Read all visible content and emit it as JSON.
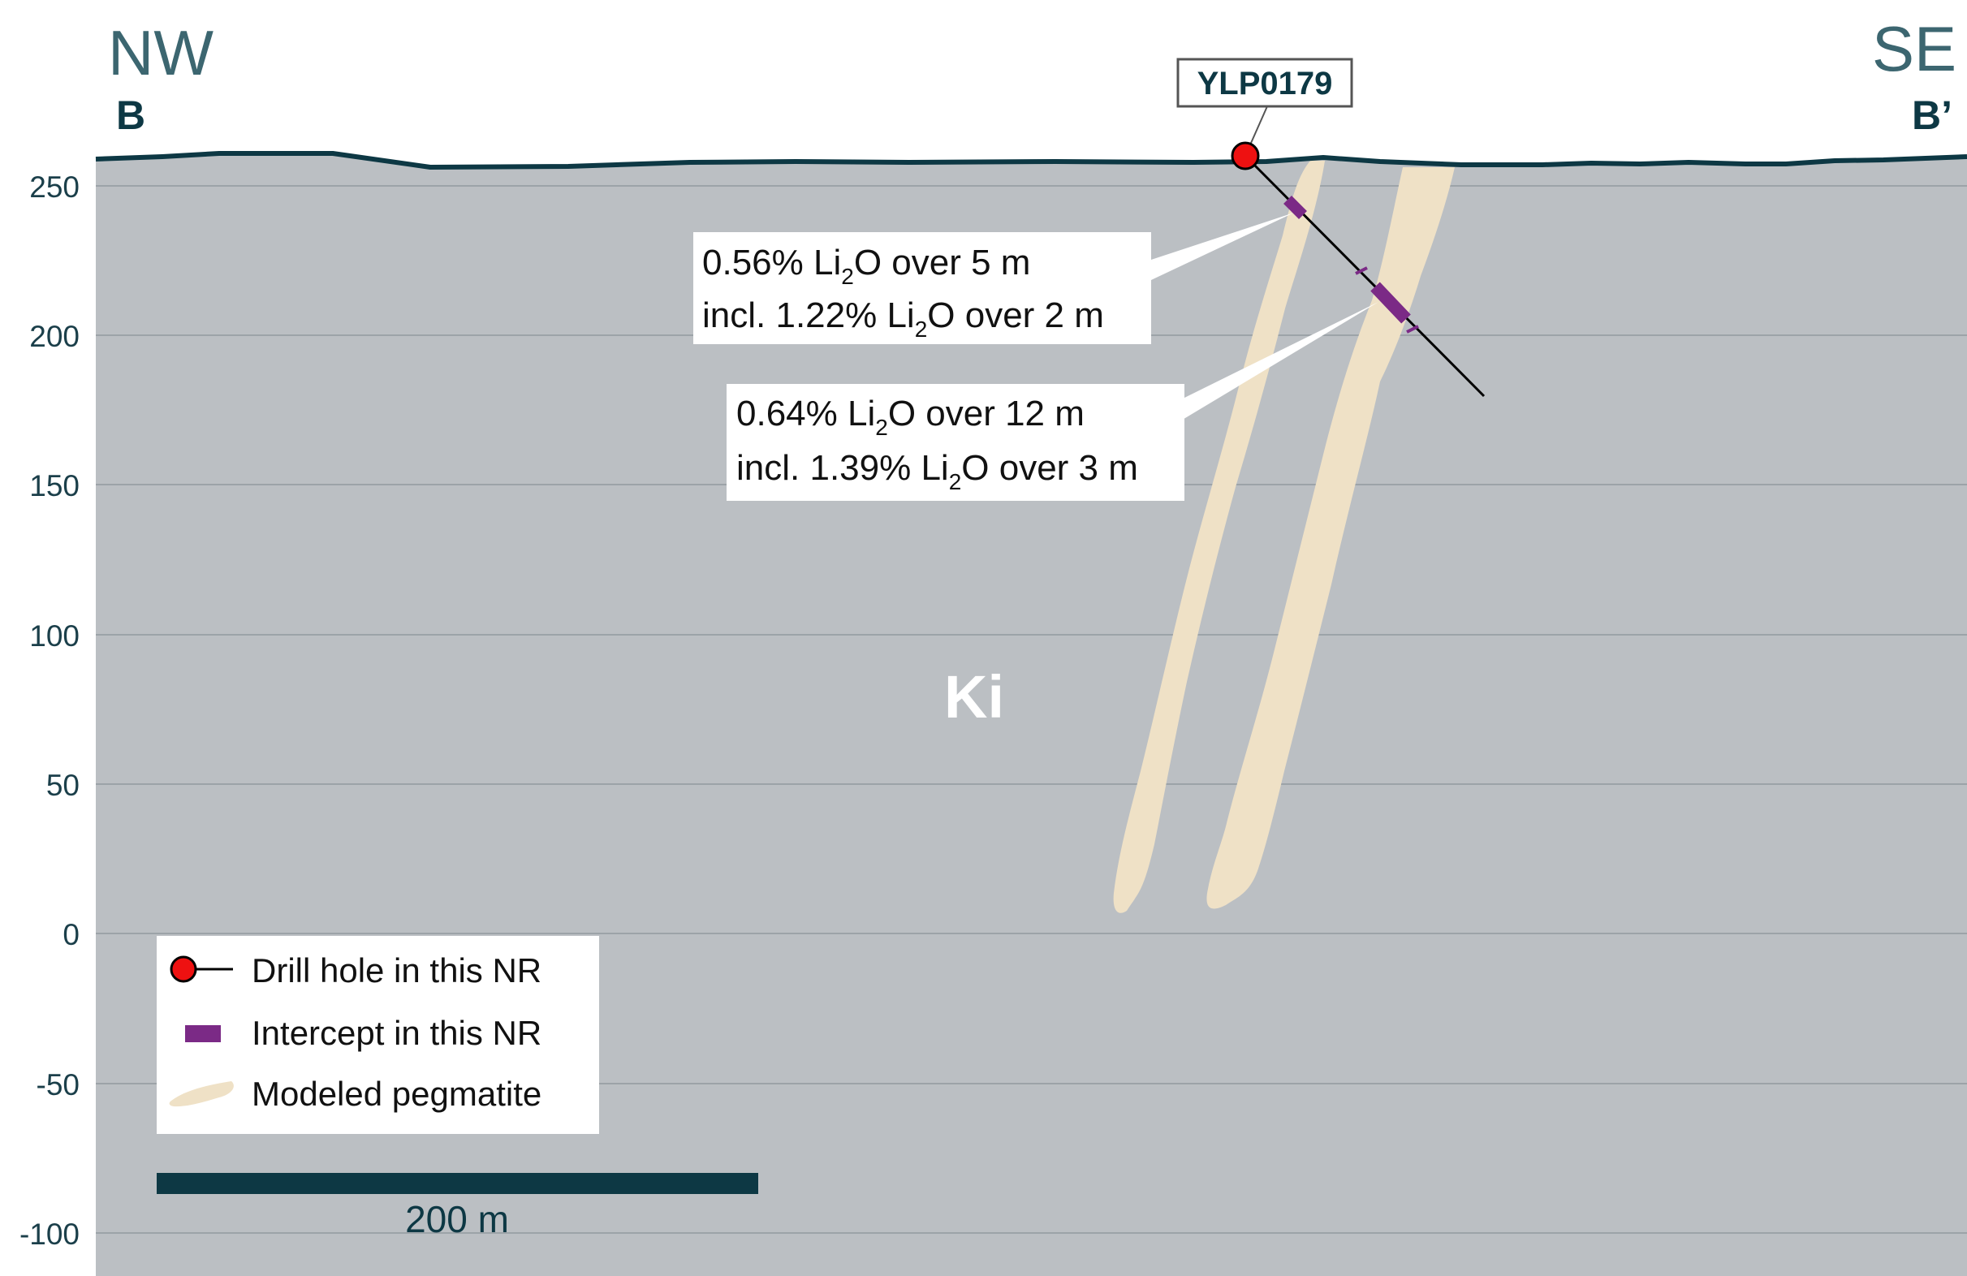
{
  "directions": {
    "left": "NW",
    "right": "SE"
  },
  "section": {
    "start": "B",
    "end": "B’"
  },
  "elevation_ticks": [
    "250",
    "200",
    "150",
    "100",
    "50",
    "0",
    "-50",
    "-100"
  ],
  "drill_hole": {
    "id": "YLP0179"
  },
  "intercepts": [
    {
      "line1_pre": "0.56% Li",
      "line1_sub": "2",
      "line1_post": "O over 5 m",
      "line2_pre": "incl. 1.22% Li",
      "line2_sub": "2",
      "line2_post": "O over 2 m"
    },
    {
      "line1_pre": "0.64% Li",
      "line1_sub": "2",
      "line1_post": "O over 12 m",
      "line2_pre": "incl. 1.39% Li",
      "line2_sub": "2",
      "line2_post": "O over 3 m"
    }
  ],
  "unit_label": "Ki",
  "legend": [
    {
      "label": "Drill hole in this NR",
      "icon": "drill-hole-icon"
    },
    {
      "label": "Intercept in this NR",
      "icon": "intercept-icon"
    },
    {
      "label": "Modeled pegmatite",
      "icon": "pegmatite-icon"
    }
  ],
  "scale_bar": {
    "label": "200 m"
  },
  "colors": {
    "rock": "#bbbfc3",
    "topography": "#0d3844",
    "pegmatite": "#efe1c6",
    "intercept": "#7b2a86",
    "collar": "#ee1111",
    "grid": "#9ca3a8"
  }
}
